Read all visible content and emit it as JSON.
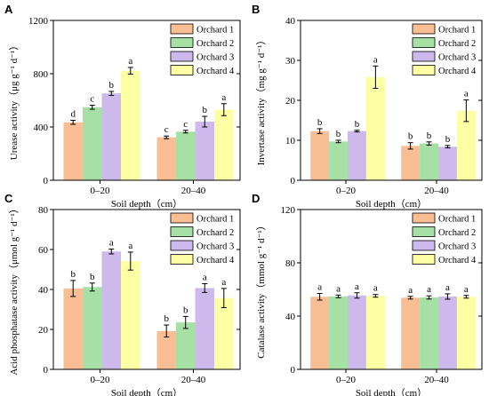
{
  "chart_data": [
    {
      "type": "bar",
      "panel": "A",
      "xlabel": "Soil depth（cm）",
      "ylabel": "Urease activity（μg g⁻¹ d⁻¹）",
      "categories": [
        "0–20",
        "20–40"
      ],
      "ylim": [
        0,
        1200
      ],
      "yticks": [
        0,
        400,
        800,
        1200
      ],
      "series": [
        {
          "name": "Orchard 1",
          "color": "#F9BE94",
          "values": [
            435,
            322
          ],
          "errors": [
            15,
            10
          ],
          "labels": [
            "d",
            "c"
          ]
        },
        {
          "name": "Orchard 2",
          "color": "#A7E0A5",
          "values": [
            548,
            365
          ],
          "errors": [
            15,
            10
          ],
          "labels": [
            "c",
            "c"
          ]
        },
        {
          "name": "Orchard 3",
          "color": "#CDB9EC",
          "values": [
            652,
            440
          ],
          "errors": [
            15,
            40
          ],
          "labels": [
            "b",
            "b"
          ]
        },
        {
          "name": "Orchard 4",
          "color": "#FDFFA4",
          "values": [
            822,
            530
          ],
          "errors": [
            25,
            45
          ],
          "labels": [
            "a",
            "a"
          ]
        }
      ]
    },
    {
      "type": "bar",
      "panel": "B",
      "xlabel": "Soil depth（cm）",
      "ylabel": "Invertase activity（mg g⁻¹ d⁻¹）",
      "categories": [
        "0–20",
        "20–40"
      ],
      "ylim": [
        0,
        40
      ],
      "yticks": [
        0,
        10,
        20,
        30,
        40
      ],
      "series": [
        {
          "name": "Orchard 1",
          "color": "#F9BE94",
          "values": [
            12.3,
            8.6
          ],
          "errors": [
            0.6,
            0.8
          ],
          "labels": [
            "b",
            "b"
          ]
        },
        {
          "name": "Orchard 2",
          "color": "#A7E0A5",
          "values": [
            9.7,
            9.2
          ],
          "errors": [
            0.3,
            0.4
          ],
          "labels": [
            "b",
            "b"
          ]
        },
        {
          "name": "Orchard 3",
          "color": "#CDB9EC",
          "values": [
            12.3,
            8.4
          ],
          "errors": [
            0.2,
            0.3
          ],
          "labels": [
            "b",
            "b"
          ]
        },
        {
          "name": "Orchard 4",
          "color": "#FDFFA4",
          "values": [
            25.8,
            17.4
          ],
          "errors": [
            2.8,
            2.7
          ],
          "labels": [
            "a",
            "a"
          ]
        }
      ]
    },
    {
      "type": "bar",
      "panel": "C",
      "xlabel": "Soil depth（cm）",
      "ylabel": "Acid phosphatase activity（μmol g⁻¹ d⁻¹）",
      "categories": [
        "0–20",
        "20–40"
      ],
      "ylim": [
        0,
        80
      ],
      "yticks": [
        0,
        20,
        40,
        60,
        80
      ],
      "series": [
        {
          "name": "Orchard 1",
          "color": "#F9BE94",
          "values": [
            40.5,
            19.2
          ],
          "errors": [
            4.0,
            3.0
          ],
          "labels": [
            "b",
            "b"
          ]
        },
        {
          "name": "Orchard 2",
          "color": "#A7E0A5",
          "values": [
            41.2,
            23.5
          ],
          "errors": [
            2.0,
            3.0
          ],
          "labels": [
            "b",
            "b"
          ]
        },
        {
          "name": "Orchard 3",
          "color": "#CDB9EC",
          "values": [
            59.0,
            40.7
          ],
          "errors": [
            1.2,
            2.2
          ],
          "labels": [
            "a",
            "a"
          ]
        },
        {
          "name": "Orchard 4",
          "color": "#FDFFA4",
          "values": [
            54.2,
            35.7
          ],
          "errors": [
            4.5,
            4.8
          ],
          "labels": [
            "a",
            "a"
          ]
        }
      ]
    },
    {
      "type": "bar",
      "panel": "D",
      "xlabel": "Soil depth（cm）",
      "ylabel": "Catalase activity（mmol g⁻¹ d⁻¹）",
      "categories": [
        "0–20",
        "20–40"
      ],
      "ylim": [
        0,
        120
      ],
      "yticks": [
        0,
        40,
        80,
        120
      ],
      "series": [
        {
          "name": "Orchard 1",
          "color": "#F9BE94",
          "values": [
            54.5,
            53.8
          ],
          "errors": [
            2.5,
            1.0
          ],
          "labels": [
            "a",
            "a"
          ]
        },
        {
          "name": "Orchard 2",
          "color": "#A7E0A5",
          "values": [
            54.8,
            54.0
          ],
          "errors": [
            1.0,
            1.2
          ],
          "labels": [
            "a",
            "a"
          ]
        },
        {
          "name": "Orchard 3",
          "color": "#CDB9EC",
          "values": [
            55.5,
            54.7
          ],
          "errors": [
            2.0,
            2.0
          ],
          "labels": [
            "a",
            "a"
          ]
        },
        {
          "name": "Orchard 4",
          "color": "#FDFFA4",
          "values": [
            55.2,
            54.5
          ],
          "errors": [
            1.0,
            1.0
          ],
          "labels": [
            "a",
            "a"
          ]
        }
      ]
    }
  ]
}
